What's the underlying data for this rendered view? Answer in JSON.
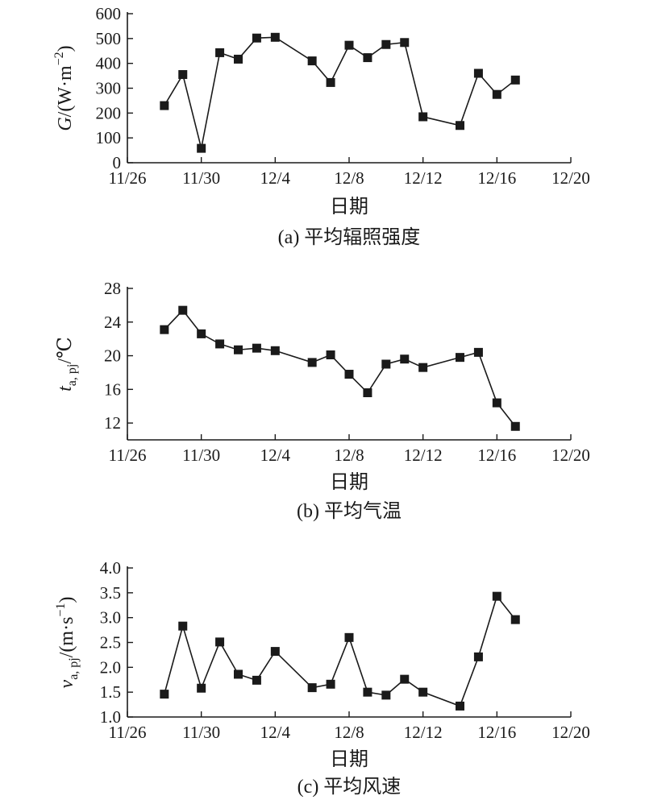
{
  "chart_data": [
    {
      "type": "line",
      "caption": "(a) 平均辐照强度",
      "xlabel": "日期",
      "ylabel": {
        "var": "G",
        "unit": "/(W·m",
        "sup": "−2",
        "close": ")"
      },
      "xticks": [
        "11/26",
        "11/30",
        "12/4",
        "12/8",
        "12/12",
        "12/16",
        "12/20"
      ],
      "yticks": [
        "0",
        "100",
        "200",
        "300",
        "400",
        "500",
        "600"
      ],
      "xlim": [
        "11/26",
        "12/20"
      ],
      "ylim": [
        0,
        600
      ],
      "x": [
        "11/28",
        "11/29",
        "11/30",
        "12/1",
        "12/2",
        "12/3",
        "12/4",
        "12/6",
        "12/7",
        "12/8",
        "12/9",
        "12/10",
        "12/11",
        "12/12",
        "12/14",
        "12/15",
        "12/16",
        "12/17"
      ],
      "y": [
        230,
        355,
        58,
        443,
        417,
        502,
        505,
        410,
        323,
        473,
        423,
        476,
        484,
        185,
        150,
        360,
        275,
        333
      ],
      "marker": "square",
      "grid": false
    },
    {
      "type": "line",
      "caption": "(b) 平均气温",
      "xlabel": "日期",
      "ylabel": {
        "var": "t",
        "sub": "a, pj",
        "unit": "/℃"
      },
      "xticks": [
        "11/26",
        "11/30",
        "12/4",
        "12/8",
        "12/12",
        "12/16",
        "12/20"
      ],
      "yticks": [
        "12",
        "16",
        "20",
        "24",
        "28"
      ],
      "xlim": [
        "11/26",
        "12/20"
      ],
      "ylim": [
        10,
        28
      ],
      "x": [
        "11/28",
        "11/29",
        "11/30",
        "12/1",
        "12/2",
        "12/3",
        "12/4",
        "12/6",
        "12/7",
        "12/8",
        "12/9",
        "12/10",
        "12/11",
        "12/12",
        "12/14",
        "12/15",
        "12/16",
        "12/17"
      ],
      "y": [
        23.1,
        25.4,
        22.6,
        21.4,
        20.7,
        20.9,
        20.6,
        19.2,
        20.1,
        17.8,
        15.6,
        19.0,
        19.6,
        18.6,
        19.8,
        20.4,
        14.4,
        11.6
      ],
      "marker": "square",
      "grid": false
    },
    {
      "type": "line",
      "caption": "(c) 平均风速",
      "xlabel": "日期",
      "ylabel": {
        "var": "v",
        "sub": "a, pj",
        "unit": "/(m·s",
        "sup": "−1",
        "close": ")"
      },
      "xticks": [
        "11/26",
        "11/30",
        "12/4",
        "12/8",
        "12/12",
        "12/16",
        "12/20"
      ],
      "yticks": [
        "1.0",
        "1.5",
        "2.0",
        "2.5",
        "3.0",
        "3.5",
        "4.0"
      ],
      "xlim": [
        "11/26",
        "12/20"
      ],
      "ylim": [
        1.0,
        4.0
      ],
      "x": [
        "11/28",
        "11/29",
        "11/30",
        "12/1",
        "12/2",
        "12/3",
        "12/4",
        "12/6",
        "12/7",
        "12/8",
        "12/9",
        "12/10",
        "12/11",
        "12/12",
        "12/14",
        "12/15",
        "12/16",
        "12/17"
      ],
      "y": [
        1.46,
        2.83,
        1.58,
        2.51,
        1.86,
        1.74,
        2.32,
        1.59,
        1.66,
        2.6,
        1.5,
        1.44,
        1.76,
        1.5,
        1.22,
        2.21,
        3.43,
        2.96
      ],
      "marker": "square",
      "grid": false
    }
  ]
}
